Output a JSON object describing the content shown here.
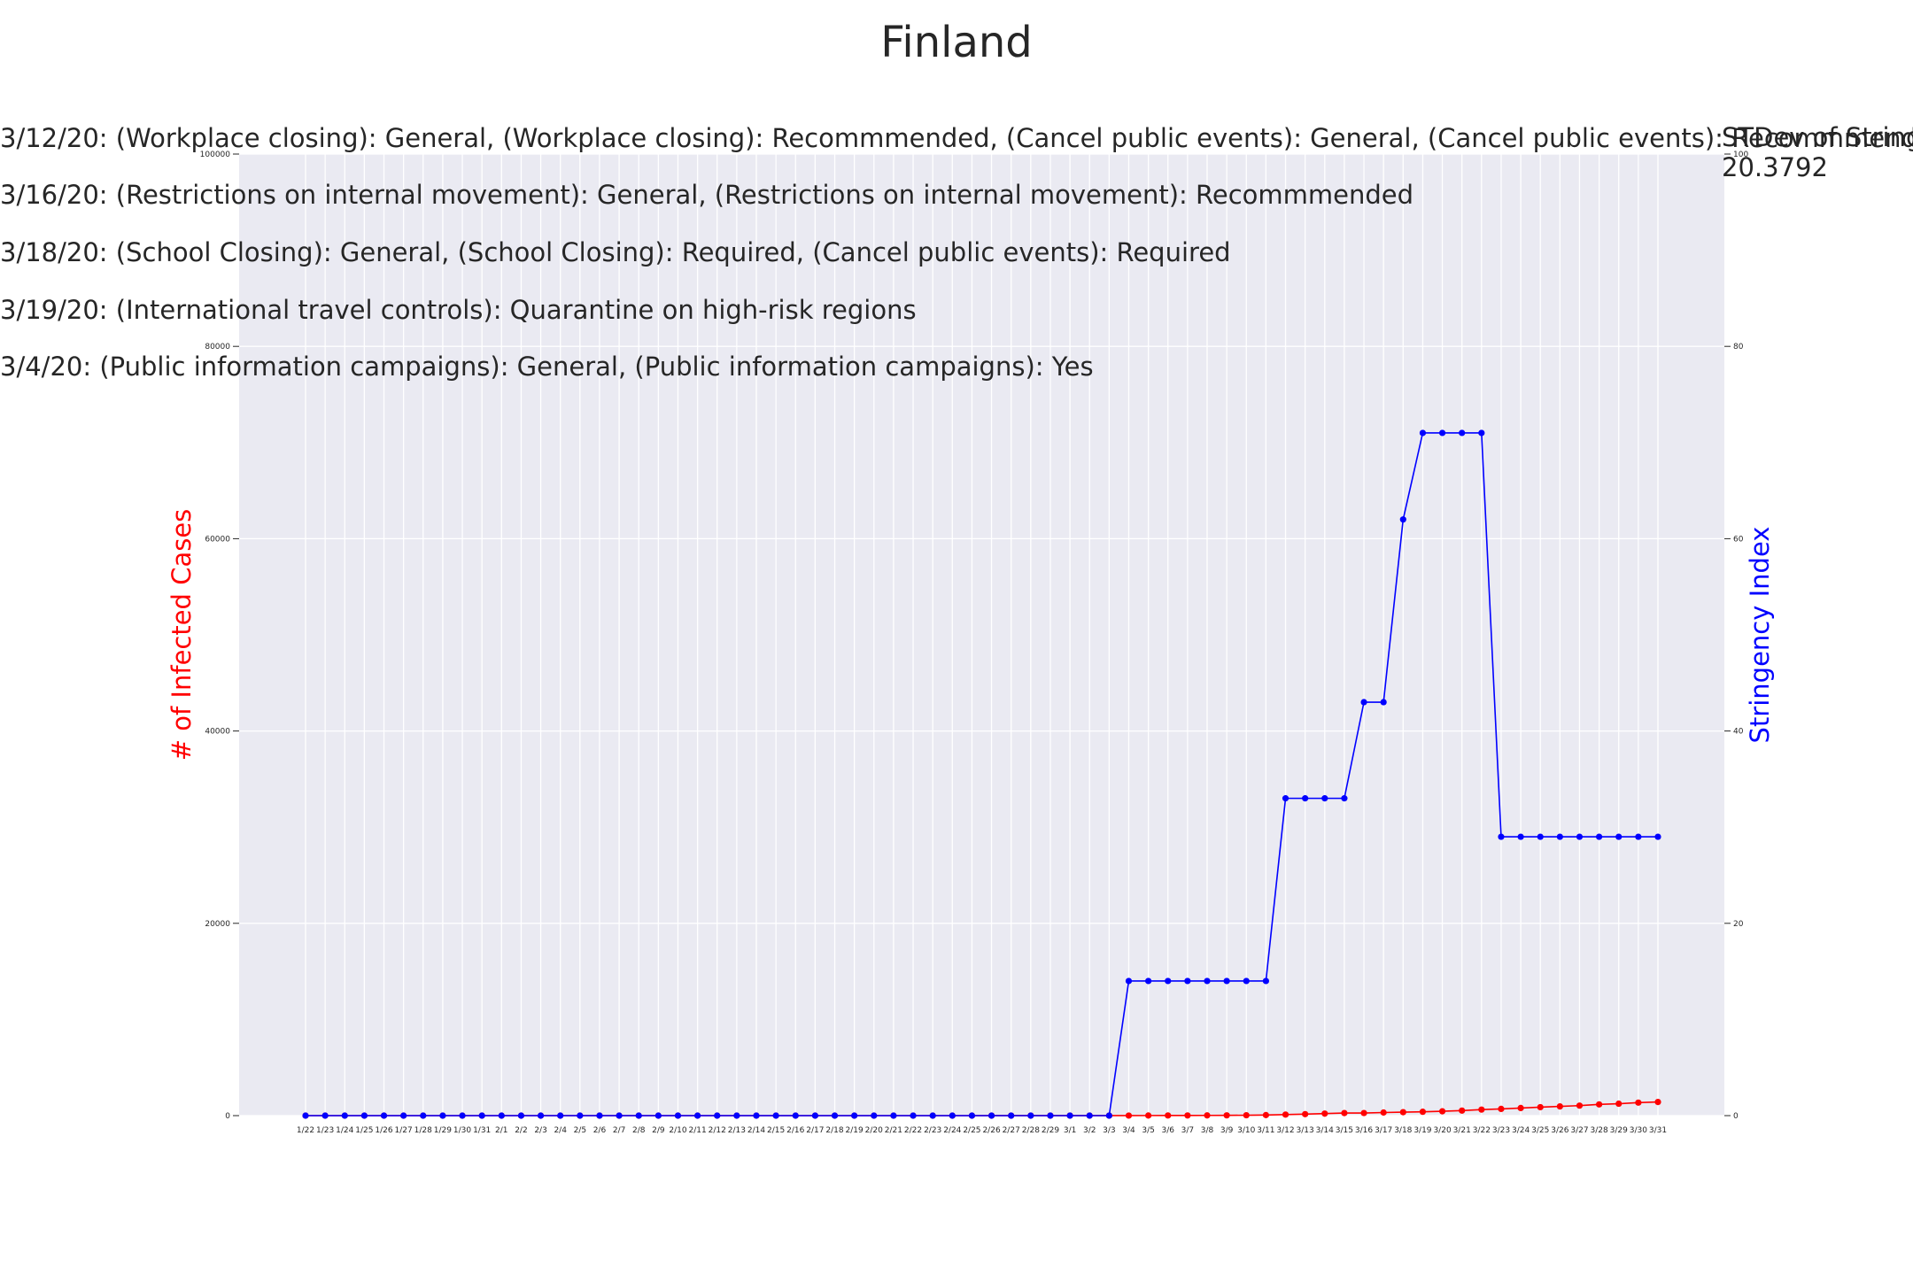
{
  "chart_data": {
    "type": "line",
    "title": "Finland",
    "ylabel_left": "# of Infected Cases",
    "ylabel_right": "Stringency Index",
    "colors": {
      "cases": "#ff0000",
      "stringency": "#0000ff",
      "plot_bg": "#eaeaf2",
      "grid": "#ffffff",
      "text": "#262626"
    },
    "ylim_left": [
      0,
      100000
    ],
    "ylim_right": [
      0,
      100
    ],
    "yticks_left": [
      "0",
      "20000",
      "40000",
      "60000",
      "80000",
      "100000"
    ],
    "yticks_right": [
      "0",
      "20",
      "40",
      "60",
      "80",
      "100"
    ],
    "grid": true,
    "x": [
      "1/22",
      "1/23",
      "1/24",
      "1/25",
      "1/26",
      "1/27",
      "1/28",
      "1/29",
      "1/30",
      "1/31",
      "2/1",
      "2/2",
      "2/3",
      "2/4",
      "2/5",
      "2/6",
      "2/7",
      "2/8",
      "2/9",
      "2/10",
      "2/11",
      "2/12",
      "2/13",
      "2/14",
      "2/15",
      "2/16",
      "2/17",
      "2/18",
      "2/19",
      "2/20",
      "2/21",
      "2/22",
      "2/23",
      "2/24",
      "2/25",
      "2/26",
      "2/27",
      "2/28",
      "2/29",
      "3/1",
      "3/2",
      "3/3",
      "3/4",
      "3/5",
      "3/6",
      "3/7",
      "3/8",
      "3/9",
      "3/10",
      "3/11",
      "3/12",
      "3/13",
      "3/14",
      "3/15",
      "3/16",
      "3/17",
      "3/18",
      "3/19",
      "3/20",
      "3/21",
      "3/22",
      "3/23",
      "3/24",
      "3/25",
      "3/26",
      "3/27",
      "3/28",
      "3/29",
      "3/30",
      "3/31"
    ],
    "series": [
      {
        "axis": "left",
        "values": [
          0,
          0,
          0,
          0,
          0,
          0,
          0,
          0,
          1,
          1,
          1,
          1,
          1,
          1,
          1,
          1,
          1,
          1,
          1,
          1,
          1,
          1,
          1,
          1,
          1,
          1,
          1,
          1,
          1,
          1,
          1,
          1,
          1,
          1,
          1,
          2,
          2,
          2,
          3,
          6,
          6,
          7,
          7,
          12,
          15,
          19,
          23,
          30,
          40,
          59,
          109,
          155,
          210,
          267,
          272,
          322,
          359,
          400,
          450,
          523,
          626,
          700,
          792,
          880,
          958,
          1041,
          1167,
          1240,
          1352,
          1418
        ]
      },
      {
        "axis": "right",
        "values": [
          0,
          0,
          0,
          0,
          0,
          0,
          0,
          0,
          0,
          0,
          0,
          0,
          0,
          0,
          0,
          0,
          0,
          0,
          0,
          0,
          0,
          0,
          0,
          0,
          0,
          0,
          0,
          0,
          0,
          0,
          0,
          0,
          0,
          0,
          0,
          0,
          0,
          0,
          0,
          0,
          0,
          0,
          14,
          14,
          14,
          14,
          14,
          14,
          14,
          14,
          33,
          33,
          33,
          33,
          43,
          43,
          62,
          71,
          71,
          71,
          71,
          29,
          29,
          29,
          29,
          29,
          29,
          29,
          29,
          29
        ]
      }
    ],
    "annotations": [
      "3/12/20: (Workplace closing): General, (Workplace closing): Recommmended, (Cancel public events): General, (Cancel public events): Recommmended",
      "3/16/20: (Restrictions on internal movement): General, (Restrictions on internal movement): Recommmended",
      "3/18/20: (School Closing): General, (School Closing): Required, (Cancel public events): Required",
      "3/19/20: (International travel controls): Quarantine on high-risk regions",
      "3/4/20: (Public information campaigns): General, (Public information campaigns): Yes"
    ],
    "stat_label": "STDev of Stringency",
    "stat_value": "20.3792"
  }
}
